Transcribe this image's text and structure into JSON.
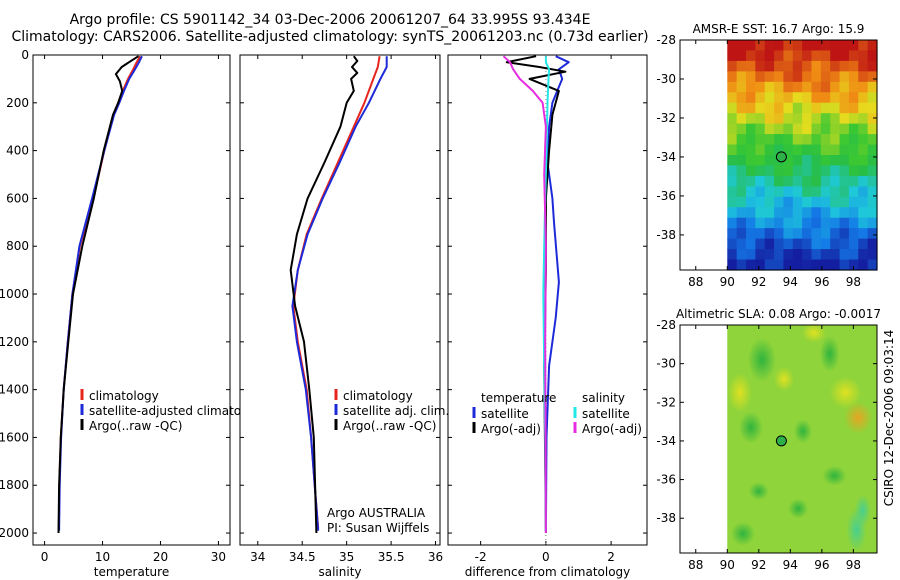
{
  "title_line1": "Argo profile: CS 5901142_34 03-Dec-2006 20061207_64 33.995S 93.434E",
  "title_line2": "Climatology: CARS2006. Satellite-adjusted climatology: synTS_20061203.nc (0.73d earlier)",
  "side_label": "CSIRO 12-Dec-2006 09:03:14",
  "colors": {
    "red": "#e8251c",
    "blue": "#1d2ad8",
    "black": "#000000",
    "cyan": "#22e8e8",
    "magenta": "#e52ce0"
  },
  "chart_data": [
    {
      "type": "line",
      "id": "temperature",
      "xlabel": "temperature",
      "ylabel": "",
      "xlim": [
        -2,
        32
      ],
      "ylim": [
        2050,
        0
      ],
      "xticks": [
        0,
        10,
        20,
        30
      ],
      "yticks": [
        0,
        200,
        400,
        600,
        800,
        1000,
        1200,
        1400,
        1600,
        1800,
        2000
      ],
      "legend": {
        "placement": "lower-right",
        "entries": [
          "climatology",
          "satellite-adjusted climatology",
          "Argo(..raw -QC)"
        ]
      },
      "series": [
        {
          "name": "climatology",
          "color": "red",
          "x": [
            16.5,
            15.9,
            15.3,
            14.4,
            13.5,
            12.7,
            11.9,
            10.3,
            8.4,
            6.1,
            4.8,
            4.0,
            3.3,
            2.8,
            2.55,
            2.45
          ],
          "y": [
            5,
            30,
            60,
            100,
            150,
            200,
            250,
            400,
            600,
            800,
            1000,
            1200,
            1400,
            1600,
            1800,
            1980
          ]
        },
        {
          "name": "satellite-adjusted climatology",
          "color": "blue",
          "x": [
            16.8,
            16.3,
            15.6,
            14.6,
            13.7,
            12.9,
            12.0,
            10.3,
            8.2,
            6.0,
            4.8,
            4.0,
            3.3,
            2.85,
            2.6,
            2.5
          ],
          "y": [
            5,
            30,
            60,
            100,
            150,
            200,
            250,
            400,
            600,
            800,
            1000,
            1200,
            1400,
            1600,
            1800,
            1990
          ]
        },
        {
          "name": "Argo(..raw -QC)",
          "color": "black",
          "x": [
            16.2,
            15.2,
            13.3,
            12.3,
            13.0,
            13.4,
            12.7,
            11.8,
            10.2,
            8.5,
            6.5,
            4.9,
            4.1,
            3.3,
            2.8,
            2.5,
            2.4
          ],
          "y": [
            5,
            20,
            50,
            80,
            110,
            150,
            200,
            250,
            400,
            600,
            800,
            1000,
            1200,
            1400,
            1600,
            1800,
            2000
          ]
        }
      ]
    },
    {
      "type": "line",
      "id": "salinity",
      "xlabel": "salinity",
      "ylabel": "",
      "xlim": [
        33.8,
        36.05
      ],
      "ylim": [
        2050,
        0
      ],
      "xticks": [
        34,
        34.5,
        35,
        35.5,
        36
      ],
      "yticks": [
        0,
        200,
        400,
        600,
        800,
        1000,
        1200,
        1400,
        1600,
        1800,
        2000
      ],
      "legend": {
        "placement": "lower-right",
        "entries": [
          "climatology",
          "satellite adj. clim.",
          "Argo(..raw -QC)"
        ]
      },
      "series": [
        {
          "name": "climatology",
          "color": "red",
          "x": [
            35.37,
            35.35,
            35.3,
            35.2,
            35.08,
            34.9,
            34.72,
            34.55,
            34.45,
            34.4,
            34.45,
            34.55,
            34.6,
            34.64,
            34.68
          ],
          "y": [
            5,
            50,
            100,
            200,
            300,
            450,
            600,
            750,
            900,
            1050,
            1200,
            1400,
            1600,
            1800,
            1980
          ]
        },
        {
          "name": "satellite adj. clim.",
          "color": "blue",
          "x": [
            35.45,
            35.45,
            35.38,
            35.25,
            35.1,
            34.92,
            34.73,
            34.56,
            34.45,
            34.39,
            34.44,
            34.54,
            34.6,
            34.64,
            34.68
          ],
          "y": [
            5,
            50,
            100,
            200,
            300,
            450,
            600,
            750,
            900,
            1050,
            1200,
            1400,
            1600,
            1800,
            1990
          ]
        },
        {
          "name": "Argo(..raw -QC)",
          "color": "black",
          "x": [
            35.08,
            35.12,
            35.06,
            35.12,
            35.05,
            35.08,
            35.0,
            34.93,
            34.75,
            34.56,
            34.44,
            34.37,
            34.42,
            34.52,
            34.58,
            34.63,
            34.66
          ],
          "y": [
            5,
            25,
            50,
            75,
            100,
            150,
            200,
            300,
            450,
            600,
            750,
            900,
            1050,
            1200,
            1400,
            1600,
            2000
          ]
        }
      ],
      "annotations": [
        "Argo AUSTRALIA",
        "PI: Susan Wijffels"
      ]
    },
    {
      "type": "line",
      "id": "difference",
      "xlabel": "difference from climatology",
      "ylabel": "",
      "xlim": [
        -3,
        3.1
      ],
      "ylim": [
        2050,
        0
      ],
      "xticks": [
        -2,
        0,
        2
      ],
      "yticks": [
        0,
        200,
        400,
        600,
        800,
        1000,
        1200,
        1400,
        1600,
        1800,
        2000
      ],
      "legend": {
        "placement": "lower-center",
        "headers": [
          "temperature",
          "salinity"
        ],
        "entries": [
          "satellite",
          "Argo(-adj)",
          "satellite",
          "Argo(-adj)"
        ]
      },
      "series": [
        {
          "name": "temperature satellite",
          "color": "blue",
          "x": [
            0.3,
            0.7,
            0.4,
            0.5,
            0.2,
            0.1,
            0.05,
            0.2,
            0.25,
            0.4,
            0.3,
            0.1,
            0.02,
            0.0
          ],
          "y": [
            5,
            30,
            60,
            100,
            200,
            300,
            450,
            600,
            700,
            950,
            1100,
            1300,
            1600,
            1990
          ]
        },
        {
          "name": "temperature Argo(-adj)",
          "color": "black",
          "x": [
            -0.3,
            -1.2,
            -0.2,
            0.6,
            -0.5,
            0.4,
            0.2,
            0.1,
            0.0,
            0.0,
            -0.05,
            0.0
          ],
          "y": [
            5,
            30,
            50,
            70,
            100,
            150,
            250,
            400,
            600,
            900,
            1300,
            2000
          ]
        },
        {
          "name": "salinity satellite",
          "color": "cyan",
          "x": [
            0.0,
            0.0,
            0.1,
            0.08,
            0.05,
            0.02,
            -0.02,
            -0.05,
            -0.08,
            -0.05,
            -0.02,
            0.0
          ],
          "y": [
            5,
            30,
            60,
            100,
            200,
            400,
            600,
            800,
            1000,
            1300,
            1600,
            1990
          ]
        },
        {
          "name": "salinity Argo(-adj)",
          "color": "magenta",
          "x": [
            -1.3,
            -1.1,
            -1.0,
            -0.8,
            -0.4,
            -0.1,
            0.0,
            -0.05,
            0.0,
            -0.02,
            0.0
          ],
          "y": [
            5,
            30,
            60,
            100,
            150,
            200,
            300,
            500,
            800,
            1200,
            2000
          ]
        }
      ]
    },
    {
      "type": "heatmap",
      "id": "sst-map",
      "title": "AMSR-E SST: 16.7 Argo: 15.9",
      "xlim": [
        87,
        99.5
      ],
      "ylim": [
        -39.8,
        -28
      ],
      "xticks": [
        88,
        90,
        92,
        94,
        96,
        98
      ],
      "yticks": [
        -28,
        -30,
        -32,
        -34,
        -36,
        -38
      ],
      "marker": {
        "lon": 93.434,
        "lat": -33.995
      }
    },
    {
      "type": "heatmap",
      "id": "sla-map",
      "title": "Altimetric SLA: 0.08 Argo: -0.0017",
      "xlim": [
        87,
        99.5
      ],
      "ylim": [
        -39.8,
        -28
      ],
      "xticks": [
        88,
        90,
        92,
        94,
        96,
        98
      ],
      "yticks": [
        -28,
        -30,
        -32,
        -34,
        -36,
        -38
      ],
      "marker": {
        "lon": 93.434,
        "lat": -33.995
      }
    }
  ]
}
